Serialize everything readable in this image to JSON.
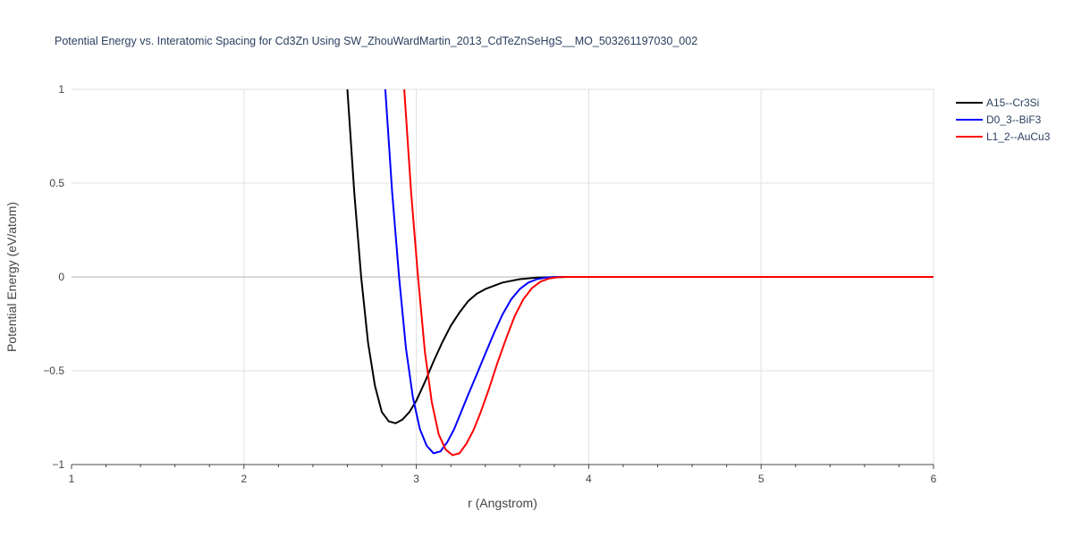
{
  "chart_data": {
    "type": "line",
    "title": "Potential Energy vs. Interatomic Spacing for Cd3Zn Using SW_ZhouWardMartin_2013_CdTeZnSeHgS__MO_503261197030_002",
    "xlabel": "r (Angstrom)",
    "ylabel": "Potential Energy (eV/atom)",
    "xlim": [
      1,
      6
    ],
    "ylim": [
      -1,
      1
    ],
    "x_ticks": [
      "1",
      "2",
      "3",
      "4",
      "5",
      "6"
    ],
    "y_ticks": [
      "1",
      "0.5",
      "0",
      "−0.5",
      "−1"
    ],
    "grid": true,
    "legend_position": "top-right",
    "series": [
      {
        "name": "A15--Cr3Si",
        "color": "#000000",
        "x": [
          2.6,
          2.64,
          2.68,
          2.72,
          2.76,
          2.8,
          2.84,
          2.88,
          2.92,
          2.96,
          3.0,
          3.05,
          3.1,
          3.15,
          3.2,
          3.25,
          3.3,
          3.35,
          3.4,
          3.5,
          3.6,
          3.7,
          3.8,
          3.9,
          4.0,
          4.5,
          5.0,
          5.5,
          6.0
        ],
        "y": [
          1.0,
          0.45,
          0.0,
          -0.35,
          -0.58,
          -0.72,
          -0.77,
          -0.78,
          -0.76,
          -0.72,
          -0.66,
          -0.56,
          -0.45,
          -0.35,
          -0.26,
          -0.19,
          -0.13,
          -0.09,
          -0.065,
          -0.03,
          -0.012,
          -0.004,
          -0.001,
          0.0,
          0.0,
          0.0,
          0.0,
          0.0,
          0.0
        ]
      },
      {
        "name": "D0_3--BiF3",
        "color": "#0000ff",
        "x": [
          2.82,
          2.86,
          2.9,
          2.94,
          2.98,
          3.02,
          3.06,
          3.1,
          3.14,
          3.18,
          3.22,
          3.26,
          3.3,
          3.35,
          3.4,
          3.45,
          3.5,
          3.55,
          3.6,
          3.65,
          3.7,
          3.75,
          3.8,
          3.85,
          4.0,
          4.5,
          5.0,
          5.5,
          6.0
        ],
        "y": [
          1.0,
          0.45,
          0.0,
          -0.38,
          -0.64,
          -0.81,
          -0.9,
          -0.94,
          -0.93,
          -0.88,
          -0.81,
          -0.72,
          -0.63,
          -0.52,
          -0.41,
          -0.3,
          -0.2,
          -0.12,
          -0.065,
          -0.03,
          -0.012,
          -0.004,
          -0.001,
          0.0,
          0.0,
          0.0,
          0.0,
          0.0,
          0.0
        ]
      },
      {
        "name": "L1_2--AuCu3",
        "color": "#ff0000",
        "x": [
          2.93,
          2.97,
          3.01,
          3.05,
          3.09,
          3.13,
          3.17,
          3.21,
          3.25,
          3.29,
          3.33,
          3.37,
          3.42,
          3.47,
          3.52,
          3.57,
          3.62,
          3.67,
          3.72,
          3.77,
          3.82,
          3.87,
          4.0,
          4.5,
          5.0,
          5.5,
          6.0
        ],
        "y": [
          1.0,
          0.45,
          0.0,
          -0.4,
          -0.67,
          -0.84,
          -0.92,
          -0.95,
          -0.94,
          -0.89,
          -0.82,
          -0.73,
          -0.6,
          -0.46,
          -0.33,
          -0.21,
          -0.12,
          -0.06,
          -0.025,
          -0.008,
          -0.002,
          0.0,
          0.0,
          0.0,
          0.0,
          0.0,
          0.0
        ]
      }
    ]
  }
}
